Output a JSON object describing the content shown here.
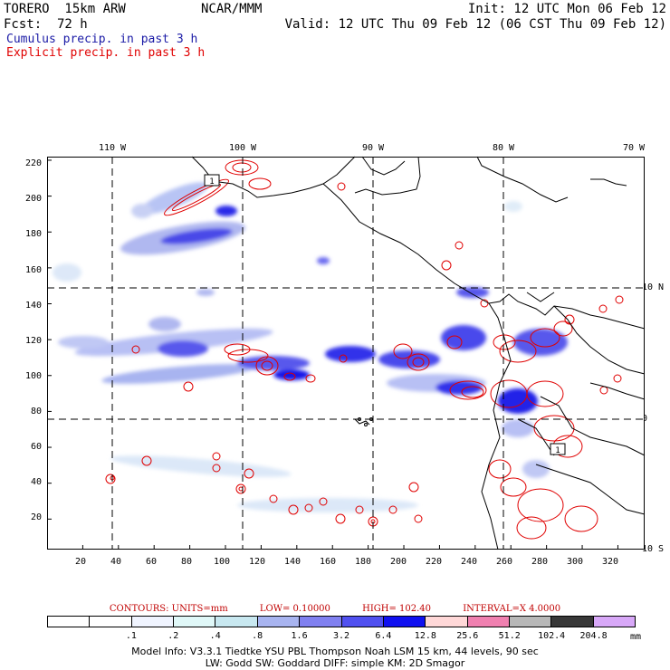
{
  "header": {
    "model": "TORERO  15km ARW",
    "org": "NCAR/MMM",
    "init": "Init: 12 UTC Mon 06 Feb 12",
    "fcst": "Fcst:  72 h",
    "valid": "Valid: 12 UTC Thu 09 Feb 12 (06 CST Thu 09 Feb 12)",
    "cumulus": "Cumulus precip. in past 3 h",
    "explicit": "Explicit precip. in past 3 h",
    "cumulus_color": "#1a1aa6",
    "explicit_color": "#e00000"
  },
  "map": {
    "top_lon_labels": [
      "110 W",
      "100 W",
      "90 W",
      "80 W",
      "70 W"
    ],
    "right_lat_labels": [
      "10 N",
      "0",
      "10 S"
    ],
    "y_ticks": [
      "220",
      "200",
      "180",
      "160",
      "140",
      "120",
      "100",
      "80",
      "60",
      "40",
      "20"
    ],
    "x_ticks": [
      "20",
      "40",
      "60",
      "80",
      "100",
      "120",
      "140",
      "160",
      "180",
      "200",
      "220",
      "240",
      "260",
      "280",
      "300",
      "320"
    ],
    "grid_x_range": [
      0,
      335
    ],
    "grid_y_range": [
      3,
      222
    ],
    "station_labels": [
      "1",
      "1"
    ]
  },
  "contours": {
    "units": "CONTOURS:  UNITS=mm",
    "low": "LOW= 0.10000",
    "high": "HIGH= 102.40",
    "interval": "INTERVAL=X  4.0000"
  },
  "colorbar": {
    "colors": [
      "#ffffff",
      "#ffffff",
      "#f0f4ff",
      "#e0f8f8",
      "#c8e8f0",
      "#a8b4f0",
      "#8080f0",
      "#5050f0",
      "#1010f0",
      "#ffd8d8",
      "#f080b0",
      "#b8b8b8",
      "#383838",
      "#d8a8f8"
    ],
    "labels": [
      ".1",
      ".2",
      ".4",
      ".8",
      "1.6",
      "3.2",
      "6.4",
      "12.8",
      "25.6",
      "51.2",
      "102.4",
      "204.8"
    ],
    "unit": "mm"
  },
  "model_info": {
    "line1": "Model Info: V3.3.1    Tiedtke YSU PBL  Thompson    Noah LSM  15 km,   44 levels,   90 sec",
    "line2": "LW: Godd SW: Goddard DIFF: simple KM: 2D Smagor"
  }
}
